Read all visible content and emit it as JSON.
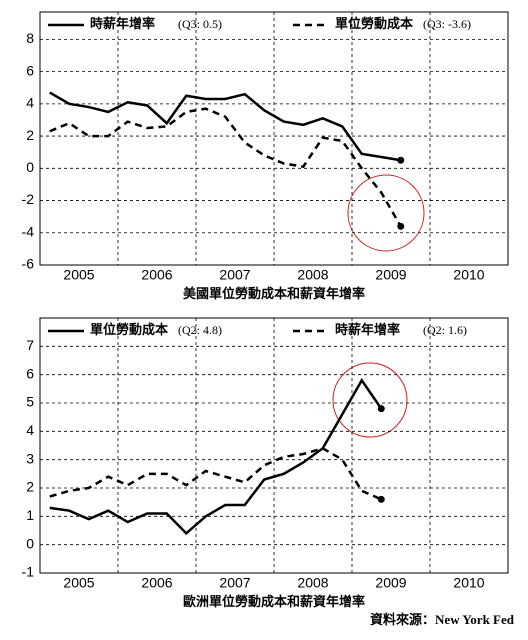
{
  "chart_data": [
    {
      "type": "line",
      "title": "美國單位勞動成本和薪資年增率",
      "xlim": [
        2005,
        2011
      ],
      "xticks": [
        {
          "value": 2005.5,
          "label": "2005"
        },
        {
          "value": 2006.5,
          "label": "2006"
        },
        {
          "value": 2007.5,
          "label": "2007"
        },
        {
          "value": 2008.5,
          "label": "2008"
        },
        {
          "value": 2009.5,
          "label": "2009"
        },
        {
          "value": 2010.5,
          "label": "2010"
        }
      ],
      "ylim": [
        -6,
        9.7
      ],
      "yticks": [
        -6,
        -4,
        -2,
        0,
        2,
        4,
        6,
        8
      ],
      "grid": true,
      "series": [
        {
          "name": "時薪年增率",
          "legend_note": "(Q3: 0.5)",
          "color": "#000000",
          "style": "solid",
          "x": [
            2005.125,
            2005.375,
            2005.625,
            2005.875,
            2006.125,
            2006.375,
            2006.625,
            2006.875,
            2007.125,
            2007.375,
            2007.625,
            2007.875,
            2008.125,
            2008.375,
            2008.625,
            2008.875,
            2009.125,
            2009.375,
            2009.625
          ],
          "values": [
            4.7,
            4.0,
            3.8,
            3.5,
            4.1,
            3.9,
            2.8,
            4.5,
            4.3,
            4.3,
            4.6,
            3.6,
            2.9,
            2.7,
            3.1,
            2.6,
            0.9,
            0.7,
            0.5
          ]
        },
        {
          "name": "單位勞動成本",
          "legend_note": "(Q3: -3.6)",
          "color": "#000000",
          "style": "dashed",
          "x": [
            2005.125,
            2005.375,
            2005.625,
            2005.875,
            2006.125,
            2006.375,
            2006.625,
            2006.875,
            2007.125,
            2007.375,
            2007.625,
            2007.875,
            2008.125,
            2008.375,
            2008.625,
            2008.875,
            2009.125,
            2009.375,
            2009.625
          ],
          "values": [
            2.3,
            2.8,
            2.0,
            2.0,
            2.9,
            2.5,
            2.6,
            3.5,
            3.7,
            3.2,
            1.6,
            0.8,
            0.3,
            0.1,
            1.9,
            1.7,
            0.0,
            -1.5,
            -3.6
          ]
        }
      ]
    },
    {
      "type": "line",
      "title": "歐洲單位勞動成本和薪資年增率",
      "source": "資料來源：New York Fed",
      "xlim": [
        2005,
        2011
      ],
      "xticks": [
        {
          "value": 2005.5,
          "label": "2005"
        },
        {
          "value": 2006.5,
          "label": "2006"
        },
        {
          "value": 2007.5,
          "label": "2007"
        },
        {
          "value": 2008.5,
          "label": "2008"
        },
        {
          "value": 2009.5,
          "label": "2009"
        },
        {
          "value": 2010.5,
          "label": "2010"
        }
      ],
      "ylim": [
        -1,
        8
      ],
      "yticks": [
        -1,
        0,
        1,
        2,
        3,
        4,
        5,
        6,
        7
      ],
      "grid": true,
      "series": [
        {
          "name": "單位勞動成本",
          "legend_note": "(Q2: 4.8)",
          "color": "#000000",
          "style": "solid",
          "x": [
            2005.125,
            2005.375,
            2005.625,
            2005.875,
            2006.125,
            2006.375,
            2006.625,
            2006.875,
            2007.125,
            2007.375,
            2007.625,
            2007.875,
            2008.125,
            2008.375,
            2008.625,
            2008.875,
            2009.125,
            2009.375
          ],
          "values": [
            1.3,
            1.2,
            0.9,
            1.2,
            0.8,
            1.1,
            1.1,
            0.4,
            1.0,
            1.4,
            1.4,
            2.3,
            2.5,
            2.9,
            3.4,
            4.6,
            5.8,
            4.8
          ]
        },
        {
          "name": "時薪年增率",
          "legend_note": "(Q2: 1.6)",
          "color": "#000000",
          "style": "dashed",
          "x": [
            2005.125,
            2005.375,
            2005.625,
            2005.875,
            2006.125,
            2006.375,
            2006.625,
            2006.875,
            2007.125,
            2007.375,
            2007.625,
            2007.875,
            2008.125,
            2008.375,
            2008.625,
            2008.875,
            2009.125,
            2009.375
          ],
          "values": [
            1.7,
            1.9,
            2.0,
            2.4,
            2.1,
            2.5,
            2.5,
            2.1,
            2.6,
            2.4,
            2.2,
            2.8,
            3.1,
            3.2,
            3.4,
            3.0,
            1.9,
            1.6
          ]
        }
      ]
    }
  ]
}
